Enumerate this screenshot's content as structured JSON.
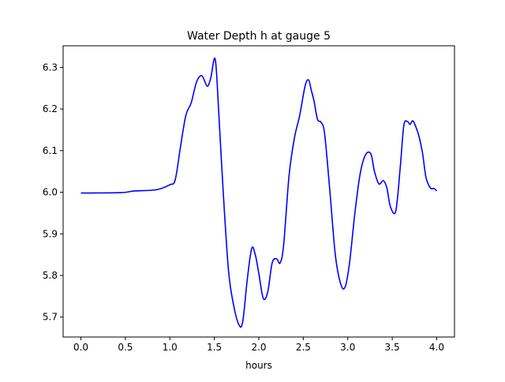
{
  "chart_data": {
    "type": "line",
    "title": "Water Depth h at gauge 5",
    "xlabel": "hours",
    "ylabel": "",
    "xlim": [
      -0.2,
      4.2
    ],
    "ylim": [
      5.652,
      6.352
    ],
    "x_ticks": [
      0.0,
      0.5,
      1.0,
      1.5,
      2.0,
      2.5,
      3.0,
      3.5,
      4.0
    ],
    "x_tick_labels": [
      "0.0",
      "0.5",
      "1.0",
      "1.5",
      "2.0",
      "2.5",
      "3.0",
      "3.5",
      "4.0"
    ],
    "y_ticks": [
      5.7,
      5.8,
      5.9,
      6.0,
      6.1,
      6.2,
      6.3
    ],
    "y_tick_labels": [
      "5.7",
      "5.8",
      "5.9",
      "6.0",
      "6.1",
      "6.2",
      "6.3"
    ],
    "grid": false,
    "legend": "none",
    "series": [
      {
        "color": "#0000ff",
        "x": [
          0.0,
          0.45,
          0.6,
          0.85,
          1.0,
          1.06,
          1.12,
          1.18,
          1.24,
          1.3,
          1.36,
          1.42,
          1.46,
          1.51,
          1.55,
          1.6,
          1.66,
          1.72,
          1.78,
          1.82,
          1.87,
          1.92,
          1.96,
          2.0,
          2.05,
          2.1,
          2.15,
          2.2,
          2.24,
          2.28,
          2.34,
          2.4,
          2.46,
          2.52,
          2.56,
          2.59,
          2.62,
          2.66,
          2.7,
          2.74,
          2.8,
          2.86,
          2.92,
          2.97,
          3.02,
          3.08,
          3.14,
          3.2,
          3.26,
          3.3,
          3.35,
          3.4,
          3.44,
          3.48,
          3.54,
          3.59,
          3.63,
          3.67,
          3.7,
          3.73,
          3.76,
          3.8,
          3.84,
          3.88,
          3.93,
          3.97,
          4.0
        ],
        "y": [
          5.998,
          5.999,
          6.003,
          6.006,
          6.018,
          6.03,
          6.11,
          6.185,
          6.215,
          6.265,
          6.28,
          6.255,
          6.275,
          6.32,
          6.19,
          6.0,
          5.81,
          5.725,
          5.68,
          5.69,
          5.79,
          5.865,
          5.85,
          5.805,
          5.745,
          5.76,
          5.83,
          5.84,
          5.83,
          5.875,
          6.04,
          6.13,
          6.185,
          6.255,
          6.27,
          6.245,
          6.22,
          6.175,
          6.168,
          6.14,
          6.0,
          5.85,
          5.78,
          5.772,
          5.83,
          5.95,
          6.045,
          6.09,
          6.092,
          6.05,
          6.02,
          6.028,
          6.01,
          5.965,
          5.955,
          6.06,
          6.16,
          6.17,
          6.163,
          6.172,
          6.16,
          6.135,
          6.095,
          6.035,
          6.01,
          6.009,
          6.003
        ]
      }
    ]
  }
}
